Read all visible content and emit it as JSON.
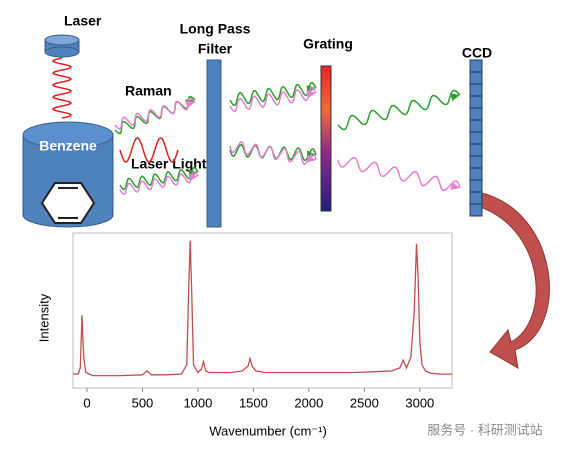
{
  "labels": {
    "laser": "Laser",
    "raman": "Raman",
    "laser_light": "Laser Light",
    "benzene": "Benzene",
    "filter_line1": "Long Pass",
    "filter_line2": "Filter",
    "grating": "Grating",
    "ccd": "CCD",
    "watermark": "服务号 · 科研测试站"
  },
  "chart_data": {
    "type": "line",
    "y_label": "Intensity",
    "x_label": "Wavenumber (cm⁻¹)",
    "x": [
      -126,
      -80,
      -60,
      -45,
      -30,
      -10,
      50,
      300,
      500,
      540,
      580,
      700,
      850,
      900,
      915,
      930,
      945,
      960,
      1000,
      1030,
      1050,
      1070,
      1100,
      1300,
      1400,
      1450,
      1470,
      1490,
      1520,
      1600,
      2000,
      2400,
      2600,
      2750,
      2820,
      2850,
      2880,
      2920,
      2950,
      2970,
      2985,
      3000,
      3020,
      3050,
      3100,
      3200,
      3290
    ],
    "series": [
      {
        "color": "#c0504d",
        "values": [
          9,
          9,
          13,
          47,
          20,
          10,
          8,
          8,
          8.5,
          11,
          8.5,
          8.5,
          9,
          15,
          60,
          95,
          60,
          15,
          10,
          12,
          17,
          11,
          10,
          10,
          11,
          14,
          19,
          14,
          11,
          10,
          10,
          10,
          10.5,
          11,
          13,
          18,
          13,
          20,
          50,
          93,
          70,
          30,
          15,
          11,
          9.5,
          9,
          9
        ]
      }
    ],
    "xlim": [
      -126,
      3290
    ],
    "xticks": [
      0,
      500,
      1000,
      1500,
      2000,
      2500,
      3000
    ],
    "ylim": [
      0,
      100
    ]
  }
}
